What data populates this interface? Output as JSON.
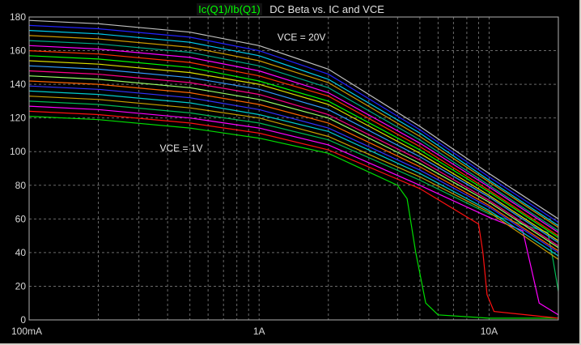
{
  "window": {
    "trace_expression": "Ic(Q1)/Ib(Q1)",
    "title": "DC Beta vs. IC and VCE"
  },
  "chart_data": {
    "type": "line",
    "title": "DC Beta vs. IC and VCE",
    "trace_label": "Ic(Q1)/Ib(Q1)",
    "x_scale": "log",
    "xlim": [
      0.1,
      20
    ],
    "ylim": [
      0,
      180
    ],
    "x_ticks": [
      {
        "value": 0.1,
        "label": "100mA"
      },
      {
        "value": 1,
        "label": "1A"
      },
      {
        "value": 10,
        "label": "10A"
      }
    ],
    "y_ticks": [
      0,
      20,
      40,
      60,
      80,
      100,
      120,
      140,
      160,
      180
    ],
    "grid": true,
    "annotations": [
      {
        "text": "VCE = 20V",
        "x": 1.2,
        "y": 166
      },
      {
        "text": "VCE = 1V",
        "x": 0.37,
        "y": 100
      }
    ],
    "series": [
      {
        "color": "#00dd00",
        "points": [
          [
            0.1,
            121
          ],
          [
            0.2,
            119
          ],
          [
            0.5,
            114
          ],
          [
            1,
            108
          ],
          [
            2,
            99
          ],
          [
            4,
            80
          ],
          [
            4.4,
            72
          ],
          [
            4.8,
            40
          ],
          [
            5.3,
            10
          ],
          [
            6,
            3
          ],
          [
            10,
            1
          ],
          [
            20,
            1
          ]
        ]
      },
      {
        "color": "#ff1010",
        "points": [
          [
            0.1,
            124
          ],
          [
            0.2,
            122
          ],
          [
            0.5,
            117
          ],
          [
            1,
            111
          ],
          [
            2,
            101
          ],
          [
            5,
            78
          ],
          [
            9,
            57
          ],
          [
            9.4,
            40
          ],
          [
            9.8,
            15
          ],
          [
            10.5,
            5
          ],
          [
            20,
            1
          ]
        ]
      },
      {
        "color": "#ff00ff",
        "points": [
          [
            0.1,
            127
          ],
          [
            0.2,
            125
          ],
          [
            0.5,
            120
          ],
          [
            1,
            114
          ],
          [
            2,
            104
          ],
          [
            5,
            80
          ],
          [
            10,
            61
          ],
          [
            14,
            53
          ],
          [
            15,
            35
          ],
          [
            16.5,
            10
          ],
          [
            20,
            3
          ]
        ]
      },
      {
        "color": "#00bb55",
        "points": [
          [
            0.1,
            130
          ],
          [
            0.2,
            128
          ],
          [
            0.5,
            123
          ],
          [
            1,
            117
          ],
          [
            2,
            107
          ],
          [
            5,
            83
          ],
          [
            10,
            63
          ],
          [
            18,
            52
          ],
          [
            19,
            35
          ],
          [
            20,
            17
          ]
        ]
      },
      {
        "color": "#c8a000",
        "points": [
          [
            0.1,
            133
          ],
          [
            0.2,
            131
          ],
          [
            0.5,
            126
          ],
          [
            1,
            120
          ],
          [
            2,
            109
          ],
          [
            5,
            85
          ],
          [
            10,
            64
          ],
          [
            20,
            36
          ]
        ]
      },
      {
        "color": "#00cccc",
        "points": [
          [
            0.1,
            136
          ],
          [
            0.2,
            134
          ],
          [
            0.5,
            129
          ],
          [
            1,
            122
          ],
          [
            2,
            112
          ],
          [
            5,
            87
          ],
          [
            10,
            65
          ],
          [
            20,
            38
          ]
        ]
      },
      {
        "color": "#3333ff",
        "points": [
          [
            0.1,
            139
          ],
          [
            0.2,
            137
          ],
          [
            0.5,
            132
          ],
          [
            1,
            125
          ],
          [
            2,
            114
          ],
          [
            5,
            89
          ],
          [
            10,
            67
          ],
          [
            20,
            40
          ]
        ]
      },
      {
        "color": "#ff6600",
        "points": [
          [
            0.1,
            142
          ],
          [
            0.2,
            140
          ],
          [
            0.5,
            135
          ],
          [
            1,
            128
          ],
          [
            2,
            117
          ],
          [
            5,
            91
          ],
          [
            10,
            68
          ],
          [
            20,
            41
          ]
        ]
      },
      {
        "color": "#99ff66",
        "points": [
          [
            0.1,
            145
          ],
          [
            0.2,
            143
          ],
          [
            0.5,
            138
          ],
          [
            1,
            131
          ],
          [
            2,
            120
          ],
          [
            5,
            93
          ],
          [
            10,
            70
          ],
          [
            20,
            43
          ]
        ]
      },
      {
        "color": "#ff0088",
        "points": [
          [
            0.1,
            148
          ],
          [
            0.2,
            146
          ],
          [
            0.5,
            141
          ],
          [
            1,
            134
          ],
          [
            2,
            122
          ],
          [
            5,
            95
          ],
          [
            10,
            71
          ],
          [
            20,
            44
          ]
        ]
      },
      {
        "color": "#3399ff",
        "points": [
          [
            0.1,
            151
          ],
          [
            0.2,
            149
          ],
          [
            0.5,
            144
          ],
          [
            1,
            137
          ],
          [
            2,
            125
          ],
          [
            5,
            97
          ],
          [
            10,
            73
          ],
          [
            20,
            46
          ]
        ]
      },
      {
        "color": "#dddd00",
        "points": [
          [
            0.1,
            154
          ],
          [
            0.2,
            152
          ],
          [
            0.5,
            147
          ],
          [
            1,
            140
          ],
          [
            2,
            128
          ],
          [
            5,
            99
          ],
          [
            10,
            74
          ],
          [
            20,
            47
          ]
        ]
      },
      {
        "color": "#00ff00",
        "points": [
          [
            0.1,
            157
          ],
          [
            0.2,
            155
          ],
          [
            0.5,
            150
          ],
          [
            1,
            142
          ],
          [
            2,
            130
          ],
          [
            5,
            101
          ],
          [
            10,
            76
          ],
          [
            20,
            49
          ]
        ]
      },
      {
        "color": "#ff3300",
        "points": [
          [
            0.1,
            160
          ],
          [
            0.2,
            158
          ],
          [
            0.5,
            153
          ],
          [
            1,
            145
          ],
          [
            2,
            133
          ],
          [
            5,
            103
          ],
          [
            10,
            77
          ],
          [
            20,
            50
          ]
        ]
      },
      {
        "color": "#ff00ff",
        "points": [
          [
            0.1,
            163
          ],
          [
            0.2,
            161
          ],
          [
            0.5,
            156
          ],
          [
            1,
            148
          ],
          [
            2,
            135
          ],
          [
            5,
            105
          ],
          [
            10,
            79
          ],
          [
            20,
            52
          ]
        ]
      },
      {
        "color": "#00aa88",
        "points": [
          [
            0.1,
            166
          ],
          [
            0.2,
            164
          ],
          [
            0.5,
            159
          ],
          [
            1,
            151
          ],
          [
            2,
            138
          ],
          [
            5,
            107
          ],
          [
            10,
            80
          ],
          [
            20,
            53
          ]
        ]
      },
      {
        "color": "#cc9900",
        "points": [
          [
            0.1,
            169
          ],
          [
            0.2,
            167
          ],
          [
            0.5,
            162
          ],
          [
            1,
            154
          ],
          [
            2,
            141
          ],
          [
            5,
            109
          ],
          [
            10,
            82
          ],
          [
            20,
            55
          ]
        ]
      },
      {
        "color": "#00ccee",
        "points": [
          [
            0.1,
            172
          ],
          [
            0.2,
            170
          ],
          [
            0.5,
            165
          ],
          [
            1,
            157
          ],
          [
            2,
            143
          ],
          [
            5,
            111
          ],
          [
            10,
            83
          ],
          [
            20,
            56
          ]
        ]
      },
      {
        "color": "#2222ff",
        "points": [
          [
            0.1,
            175
          ],
          [
            0.2,
            173
          ],
          [
            0.5,
            168
          ],
          [
            1,
            160
          ],
          [
            2,
            146
          ],
          [
            5,
            113
          ],
          [
            10,
            85
          ],
          [
            20,
            58
          ]
        ]
      },
      {
        "color": "#c0c0c0",
        "points": [
          [
            0.1,
            178
          ],
          [
            0.2,
            176
          ],
          [
            0.5,
            171
          ],
          [
            1,
            163
          ],
          [
            2,
            149
          ],
          [
            5,
            115
          ],
          [
            10,
            87
          ],
          [
            20,
            60
          ]
        ]
      }
    ]
  }
}
